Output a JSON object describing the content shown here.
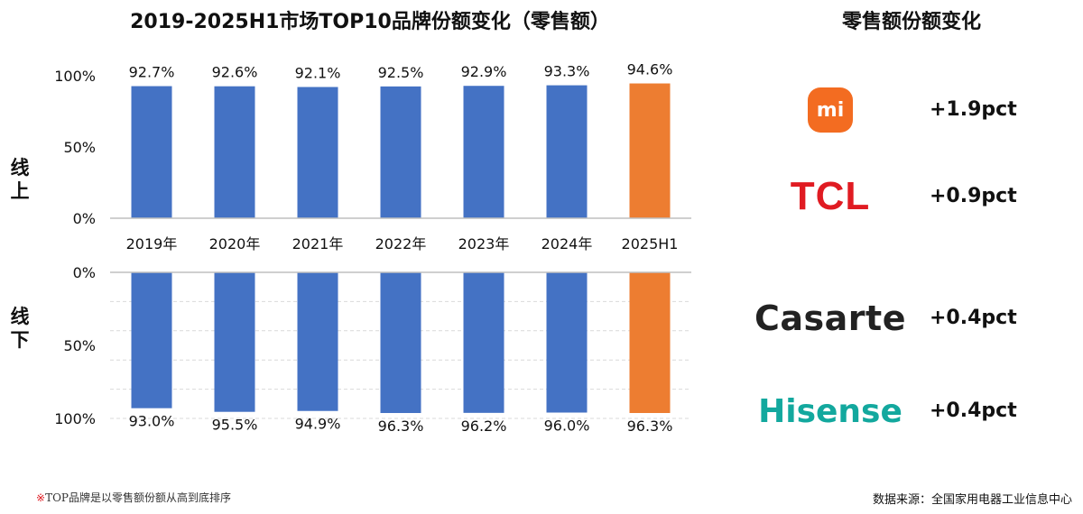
{
  "chart_title": "2019-2025H1市场TOP10品牌份额变化（零售额）",
  "right_title": "零售额份额变化",
  "footnote_mark": "※",
  "footnote_text": "TOP品牌是以零售额份额从高到底排序",
  "source": "数据来源：全国家用电器工业信息中心",
  "colors": {
    "bar": "#4472c4",
    "highlight": "#ed7d31"
  },
  "chart_data": [
    {
      "type": "bar",
      "row_label": "线上",
      "categories": [
        "2019年",
        "2020年",
        "2021年",
        "2022年",
        "2023年",
        "2024年",
        "2025H1"
      ],
      "values": [
        92.7,
        92.6,
        92.1,
        92.5,
        92.9,
        93.3,
        94.6
      ],
      "value_labels": [
        "92.7%",
        "92.6%",
        "92.1%",
        "92.5%",
        "92.9%",
        "93.3%",
        "94.6%"
      ],
      "yticks": [
        "0%",
        "50%",
        "100%"
      ],
      "ylim": [
        0,
        100
      ],
      "highlight_index": 6,
      "grid": false
    },
    {
      "type": "bar",
      "row_label": "线下",
      "categories": [
        "2019年",
        "2020年",
        "2021年",
        "2022年",
        "2023年",
        "2024年",
        "2025H1"
      ],
      "values": [
        93.0,
        95.5,
        94.9,
        96.3,
        96.2,
        96.0,
        96.3
      ],
      "value_labels": [
        "93.0%",
        "95.5%",
        "94.9%",
        "96.3%",
        "96.2%",
        "96.0%",
        "96.3%"
      ],
      "yticks": [
        "0%",
        "50%",
        "100%"
      ],
      "ylim": [
        0,
        100
      ],
      "inverted": true,
      "highlight_index": 6,
      "grid": true
    }
  ],
  "brands": [
    {
      "name": "xiaomi",
      "logo_text": "mi",
      "change": "+1.9pct"
    },
    {
      "name": "tcl",
      "logo_text": "TCL",
      "change": "+0.9pct"
    },
    {
      "name": "casarte",
      "logo_text": "Casarte",
      "change": "+0.4pct"
    },
    {
      "name": "hisense",
      "logo_text": "Hisense",
      "change": "+0.4pct"
    }
  ]
}
